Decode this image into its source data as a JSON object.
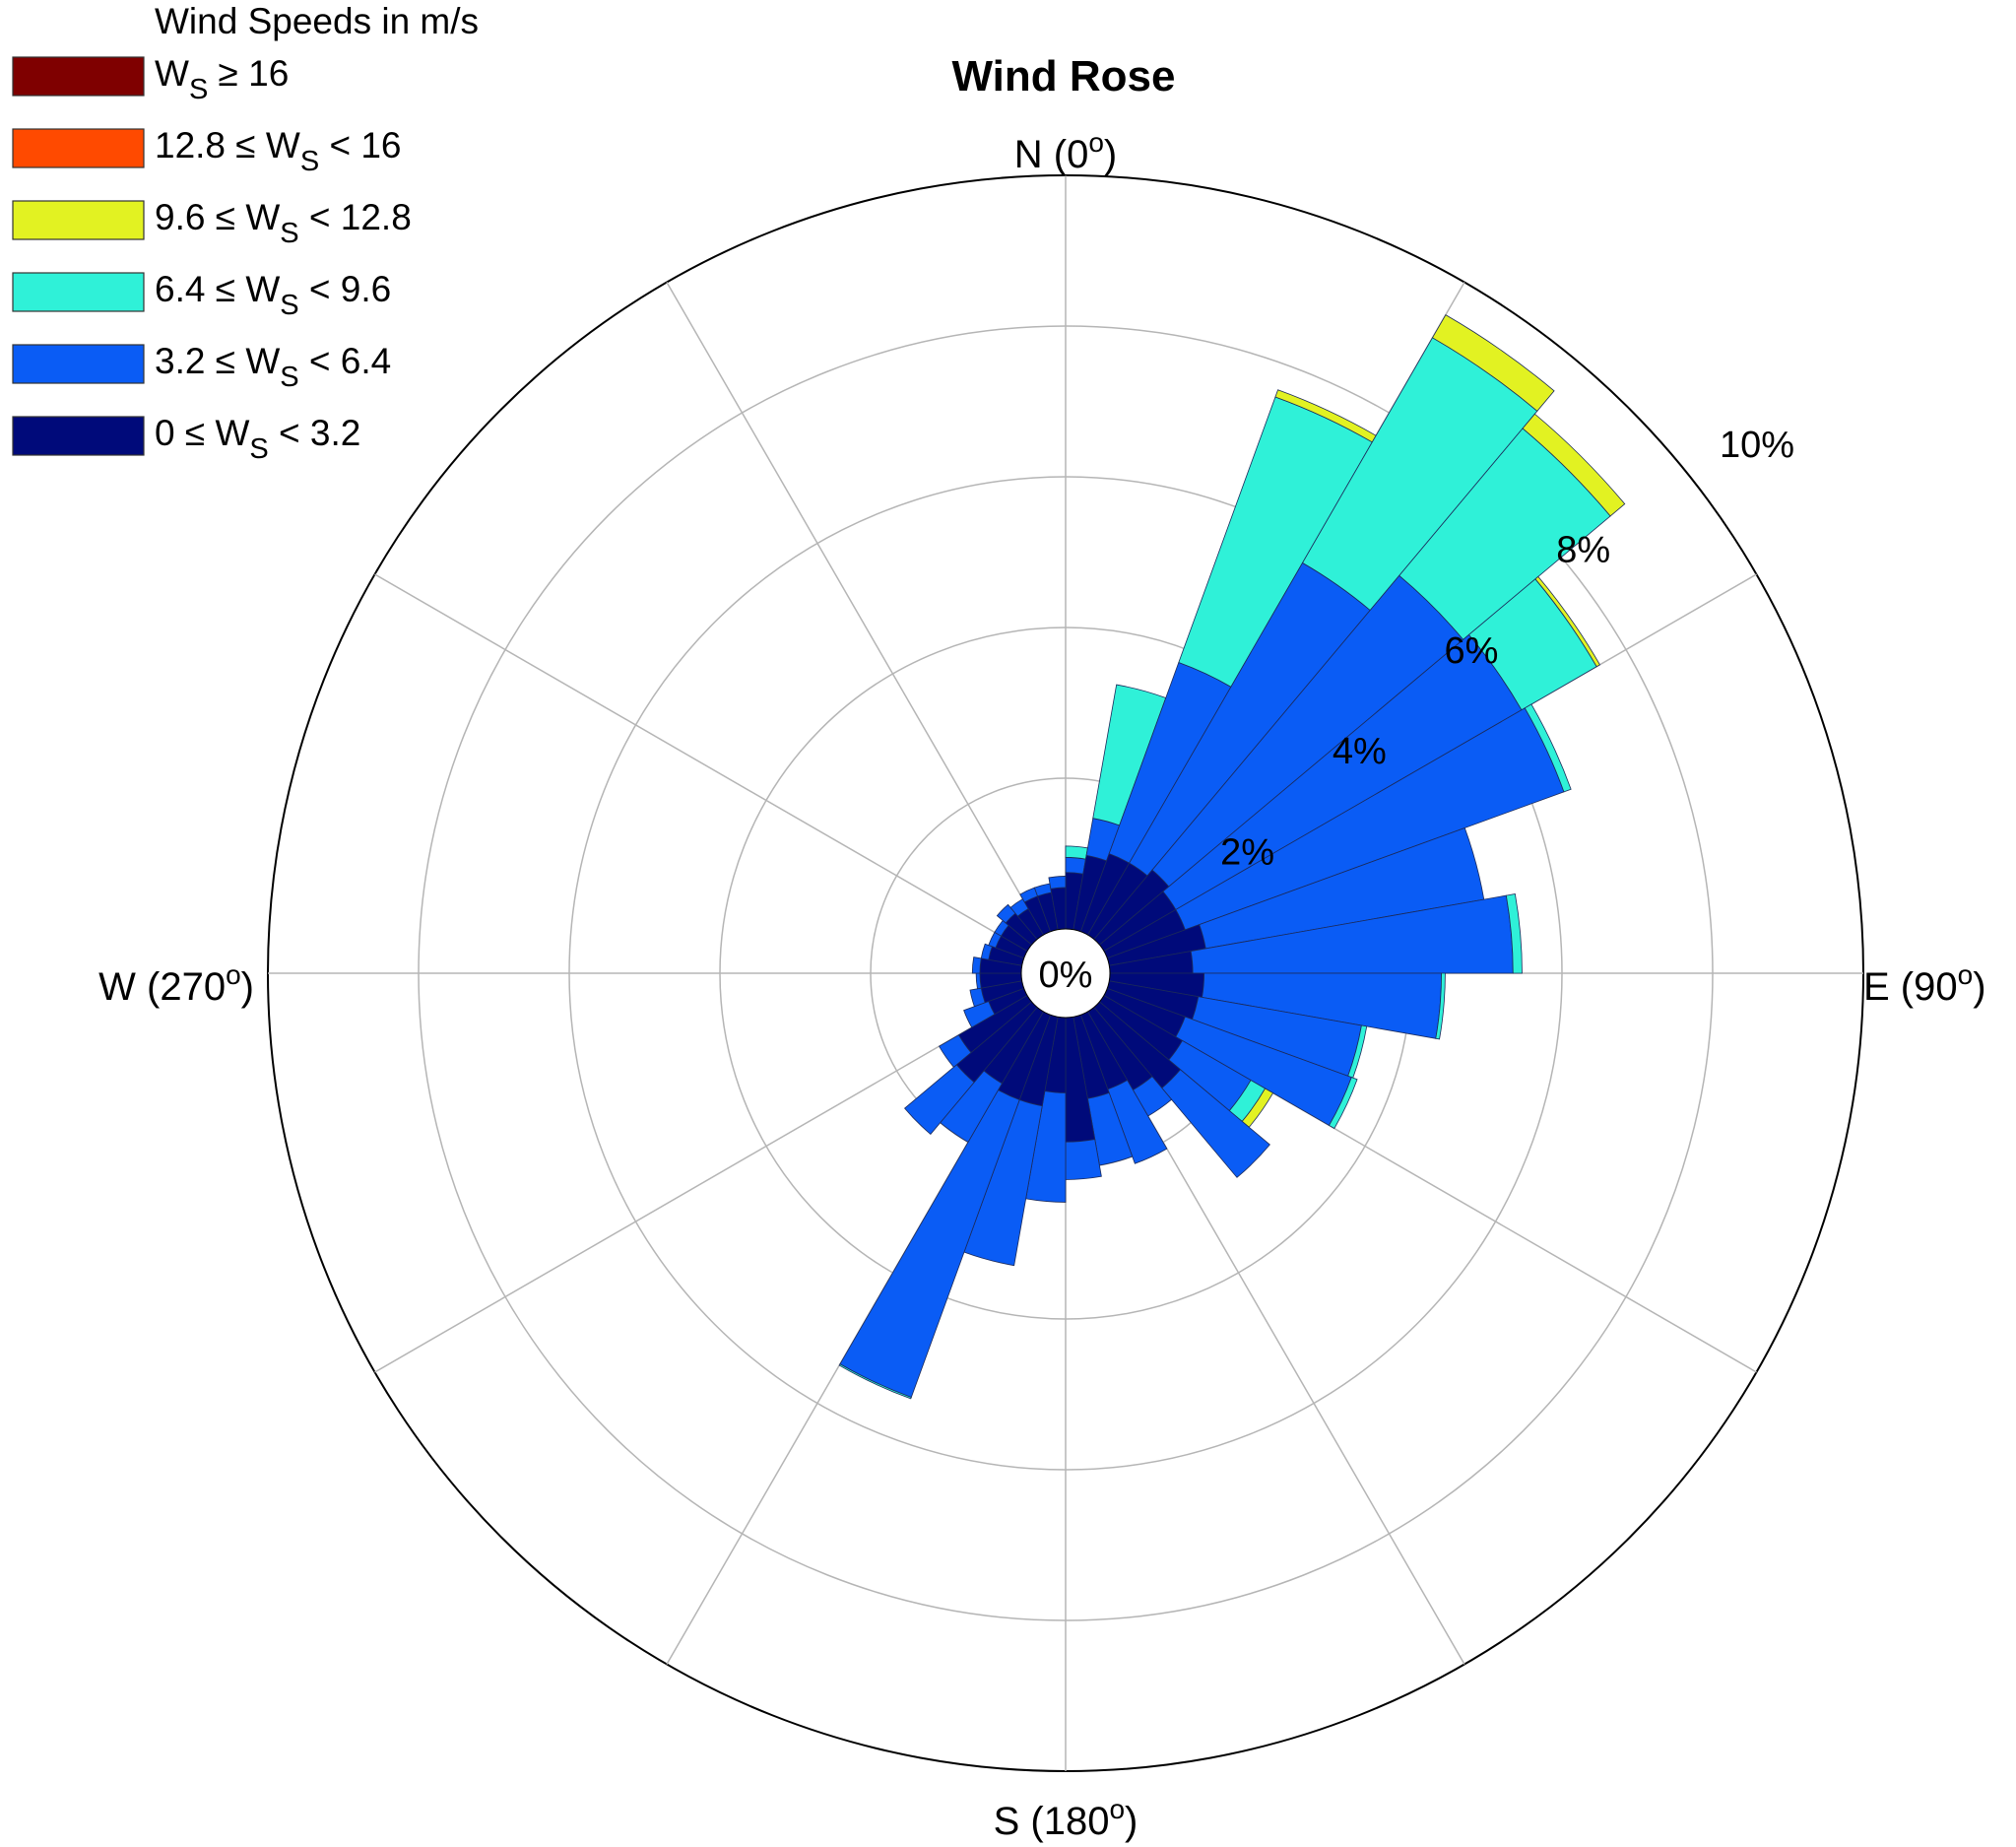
{
  "chart_data": {
    "type": "wind-rose",
    "title": "Wind Rose",
    "legend": {
      "title": "Wind Speeds in m/s",
      "placement": "top-left",
      "entries": [
        {
          "lhs": "",
          "sym": "W",
          "sub": "S",
          "rhs": " ≥ 16",
          "color": "#7f0000"
        },
        {
          "lhs": "12.8 ≤ ",
          "sym": "W",
          "sub": "S",
          "rhs": " < 16",
          "color": "#ff4a00"
        },
        {
          "lhs": "9.6 ≤ ",
          "sym": "W",
          "sub": "S",
          "rhs": " < 12.8",
          "color": "#e2f222"
        },
        {
          "lhs": "6.4 ≤ ",
          "sym": "W",
          "sub": "S",
          "rhs": " < 9.6",
          "color": "#2ff1d8"
        },
        {
          "lhs": "3.2 ≤ ",
          "sym": "W",
          "sub": "S",
          "rhs": " < 6.4",
          "color": "#0a5cf5"
        },
        {
          "lhs": "0 ≤ ",
          "sym": "W",
          "sub": "S",
          "rhs": " < 3.2",
          "color": "#000a7a"
        }
      ]
    },
    "directions": [
      {
        "label": "N",
        "deg": "0"
      },
      {
        "label": "E",
        "deg": "90"
      },
      {
        "label": "S",
        "deg": "180"
      },
      {
        "label": "W",
        "deg": "270"
      }
    ],
    "degree_symbol": "o",
    "radial_labels": [
      "0%",
      "2%",
      "4%",
      "6%",
      "8%",
      "10%"
    ],
    "radial_max_percent": 10,
    "grid": true,
    "sector_width_deg": 10,
    "series_names": [
      "0 ≤ Ws < 3.2",
      "3.2 ≤ Ws < 6.4",
      "6.4 ≤ Ws < 9.6",
      "9.6 ≤ Ws < 12.8",
      "12.8 ≤ Ws < 16",
      "Ws ≥ 16"
    ],
    "series_colors": [
      "#000a7a",
      "#0a5cf5",
      "#2ff1d8",
      "#e2f222",
      "#ff4a00",
      "#7f0000"
    ],
    "sectors": [
      {
        "dir": 5,
        "values": [
          0.75,
          0.2,
          0.15,
          0,
          0,
          0
        ]
      },
      {
        "dir": 15,
        "values": [
          1.0,
          0.5,
          1.8,
          0,
          0,
          0
        ]
      },
      {
        "dir": 25,
        "values": [
          1.1,
          2.7,
          3.75,
          0.1,
          0,
          0
        ]
      },
      {
        "dir": 35,
        "values": [
          1.1,
          4.6,
          3.45,
          0.35,
          0,
          0
        ]
      },
      {
        "dir": 45,
        "values": [
          1.2,
          5.1,
          2.55,
          0.25,
          0,
          0
        ]
      },
      {
        "dir": 55,
        "values": [
          1.1,
          5.3,
          1.15,
          0.05,
          0,
          0
        ]
      },
      {
        "dir": 65,
        "values": [
          1.1,
          5.35,
          0.1,
          0,
          0,
          0
        ]
      },
      {
        "dir": 75,
        "values": [
          1.3,
          3.75,
          0,
          0,
          0,
          0
        ]
      },
      {
        "dir": 85,
        "values": [
          1.1,
          4.25,
          0.12,
          0,
          0,
          0
        ]
      },
      {
        "dir": 95,
        "values": [
          1.25,
          3.15,
          0.05,
          0,
          0,
          0
        ]
      },
      {
        "dir": 105,
        "values": [
          1.2,
          2.2,
          0.07,
          0,
          0,
          0
        ]
      },
      {
        "dir": 115,
        "values": [
          1.1,
          2.35,
          0.08,
          0,
          0,
          0
        ]
      },
      {
        "dir": 125,
        "values": [
          1.2,
          1.05,
          0.22,
          0.12,
          0,
          0
        ]
      },
      {
        "dir": 135,
        "values": [
          1.4,
          1.55,
          0,
          0,
          0,
          0
        ]
      },
      {
        "dir": 145,
        "values": [
          1.2,
          0.4,
          0,
          0,
          0,
          0
        ]
      },
      {
        "dir": 155,
        "values": [
          1.05,
          1.05,
          0,
          0,
          0,
          0
        ]
      },
      {
        "dir": 165,
        "values": [
          1.1,
          0.9,
          0,
          0,
          0,
          0
        ]
      },
      {
        "dir": 175,
        "values": [
          1.65,
          0.5,
          0,
          0,
          0,
          0
        ]
      },
      {
        "dir": 185,
        "values": [
          1.0,
          1.45,
          0,
          0,
          0,
          0
        ]
      },
      {
        "dir": 195,
        "values": [
          1.2,
          2.15,
          0,
          0,
          0,
          0
        ]
      },
      {
        "dir": 205,
        "values": [
          1.2,
          4.2,
          0.02,
          0,
          0,
          0
        ]
      },
      {
        "dir": 215,
        "values": [
          1.1,
          0.9,
          0,
          0,
          0,
          0
        ]
      },
      {
        "dir": 225,
        "values": [
          1.3,
          0.9,
          0,
          0,
          0,
          0
        ]
      },
      {
        "dir": 235,
        "values": [
          1.05,
          0.3,
          0,
          0,
          0,
          0
        ]
      },
      {
        "dir": 245,
        "values": [
          0.5,
          0.35,
          0,
          0,
          0,
          0
        ]
      },
      {
        "dir": 255,
        "values": [
          0.55,
          0.15,
          0,
          0,
          0,
          0
        ]
      },
      {
        "dir": 265,
        "values": [
          0.55,
          0.05,
          0,
          0,
          0,
          0
        ]
      },
      {
        "dir": 275,
        "values": [
          0.55,
          0.1,
          0,
          0,
          0,
          0
        ]
      },
      {
        "dir": 285,
        "values": [
          0.45,
          0.1,
          0,
          0,
          0,
          0
        ]
      },
      {
        "dir": 295,
        "values": [
          0.4,
          0.1,
          0,
          0,
          0,
          0
        ]
      },
      {
        "dir": 305,
        "values": [
          0.4,
          0.1,
          0,
          0,
          0,
          0
        ]
      },
      {
        "dir": 315,
        "values": [
          0.45,
          0.15,
          0,
          0,
          0,
          0
        ]
      },
      {
        "dir": 325,
        "values": [
          0.4,
          0.15,
          0,
          0,
          0,
          0
        ]
      },
      {
        "dir": 335,
        "values": [
          0.5,
          0.12,
          0,
          0,
          0,
          0
        ]
      },
      {
        "dir": 345,
        "values": [
          0.5,
          0.12,
          0,
          0,
          0,
          0
        ]
      },
      {
        "dir": 355,
        "values": [
          0.55,
          0.15,
          0,
          0,
          0,
          0
        ]
      }
    ]
  }
}
